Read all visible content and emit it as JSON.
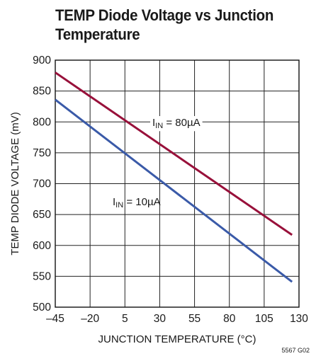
{
  "chart_data": {
    "type": "line",
    "title_lines": [
      "TEMP Diode Voltage vs Junction",
      "Temperature"
    ],
    "xlabel": "JUNCTION TEMPERATURE (°C)",
    "ylabel": "TEMP DIODE VOLTAGE (mV)",
    "xlim": [
      -45,
      130
    ],
    "ylim": [
      500,
      900
    ],
    "x_ticks": [
      -45,
      -20,
      5,
      30,
      55,
      80,
      105,
      130
    ],
    "x_tick_labels": [
      "–45",
      "–20",
      "5",
      "30",
      "55",
      "80",
      "105",
      "130"
    ],
    "y_ticks": [
      500,
      550,
      600,
      650,
      700,
      750,
      800,
      850,
      900
    ],
    "y_tick_labels": [
      "500",
      "550",
      "600",
      "650",
      "700",
      "750",
      "800",
      "850",
      "900"
    ],
    "grid": true,
    "series": [
      {
        "name_main": "I",
        "name_sub": "IN",
        "name_rest": " = 80µA",
        "color": "#98103a",
        "x": [
          -45,
          125
        ],
        "y": [
          880,
          617
        ]
      },
      {
        "name_main": "I",
        "name_sub": "IN",
        "name_rest": " = 10µA",
        "color": "#3a5aa8",
        "x": [
          -45,
          125
        ],
        "y": [
          836,
          541
        ]
      }
    ],
    "figure_code": "5567 G02"
  }
}
